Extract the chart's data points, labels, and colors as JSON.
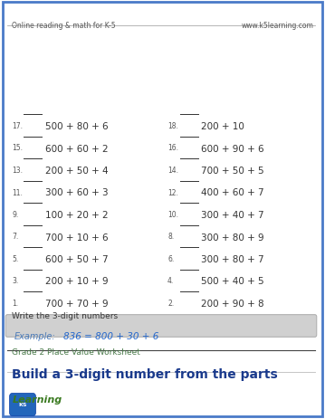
{
  "title": "Build a 3-digit number from the parts",
  "subtitle": "Grade 2 Place Value Worksheet",
  "example_label": "Example:",
  "example_eq": "836 = 800 + 30 + 6",
  "instruction": "Write the 3-digit numbers",
  "left_nums": [
    "1.",
    "3.",
    "5.",
    "7.",
    "9.",
    "11.",
    "13.",
    "15.",
    "17."
  ],
  "left_exprs": [
    "700 + 70 + 9",
    "200 + 10 + 9",
    "600 + 50 + 7",
    "700 + 10 + 6",
    "100 + 20 + 2",
    "300 + 60 + 3",
    "200 + 50 + 4",
    "600 + 60 + 2",
    "500 + 80 + 6"
  ],
  "right_nums": [
    "2.",
    "4.",
    "6.",
    "8.",
    "10.",
    "12.",
    "14.",
    "16.",
    "18."
  ],
  "right_exprs": [
    "200 + 90 + 8",
    "500 + 40 + 5",
    "300 + 80 + 7",
    "300 + 80 + 9",
    "300 + 40 + 7",
    "400 + 60 + 7",
    "700 + 50 + 5",
    "600 + 90 + 6",
    "200 + 10"
  ],
  "footer_left": "Online reading & math for K-5",
  "footer_right": "www.k5learning.com",
  "bg_color": "#ffffff",
  "border_color": "#4a7ac8",
  "title_color": "#1a3a8c",
  "subtitle_color": "#4a7a4a",
  "example_bg": "#d0d0d0",
  "example_label_color": "#4a7ab8",
  "example_eq_color": "#2266cc",
  "instruction_color": "#333333",
  "problem_num_color": "#555555",
  "problem_expr_color": "#333333",
  "footer_color": "#555555",
  "line_color": "#555555",
  "blank_line_color": "#333333"
}
